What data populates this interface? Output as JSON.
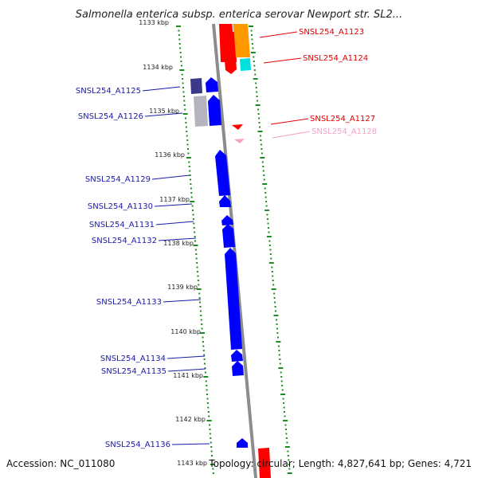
{
  "title": "Salmonella enterica subsp. enterica serovar Newport str. SL2...",
  "footer": {
    "accession": "Accession: NC_011080",
    "summary": "Topology: circular; Length: 4,827,641 bp; Genes: 4,721"
  },
  "ticks": [
    "1133 kbp",
    "1134 kbp",
    "1135 kbp",
    "1136 kbp",
    "1137 kbp",
    "1138 kbp",
    "1139 kbp",
    "1140 kbp",
    "1141 kbp",
    "1142 kbp",
    "1143 kbp"
  ],
  "genes_right": [
    {
      "label": "SNSL254_A1123",
      "color": "#e00000"
    },
    {
      "label": "SNSL254_A1124",
      "color": "#e00000"
    },
    {
      "label": "SNSL254_A1127",
      "color": "#e00000"
    },
    {
      "label": "SNSL254_A1128",
      "color": "#f4a0c8"
    }
  ],
  "genes_left": [
    {
      "label": "SNSL254_A1125",
      "color": "#1a1aa8"
    },
    {
      "label": "SNSL254_A1126",
      "color": "#1a1aa8"
    },
    {
      "label": "SNSL254_A1129",
      "color": "#1a1aa8"
    },
    {
      "label": "SNSL254_A1130",
      "color": "#1a1aa8"
    },
    {
      "label": "SNSL254_A1131",
      "color": "#1a1aa8"
    },
    {
      "label": "SNSL254_A1132",
      "color": "#1a1aa8"
    },
    {
      "label": "SNSL254_A1133",
      "color": "#1a1aa8"
    },
    {
      "label": "SNSL254_A1134",
      "color": "#1a1aa8"
    },
    {
      "label": "SNSL254_A1135",
      "color": "#1a1aa8"
    },
    {
      "label": "SNSL254_A1136",
      "color": "#1a1aa8"
    }
  ],
  "colors": {
    "backbone": "#8c8c8c",
    "dots": "#1f8a1f",
    "forward_gene": "#0000ff",
    "reverse_gene": "#ff0000",
    "orange_feature": "#ff9900",
    "cyan_feature": "#00e0e0",
    "grey_feature": "#b4b4be",
    "dark_blue_feature": "#3a3a88"
  }
}
